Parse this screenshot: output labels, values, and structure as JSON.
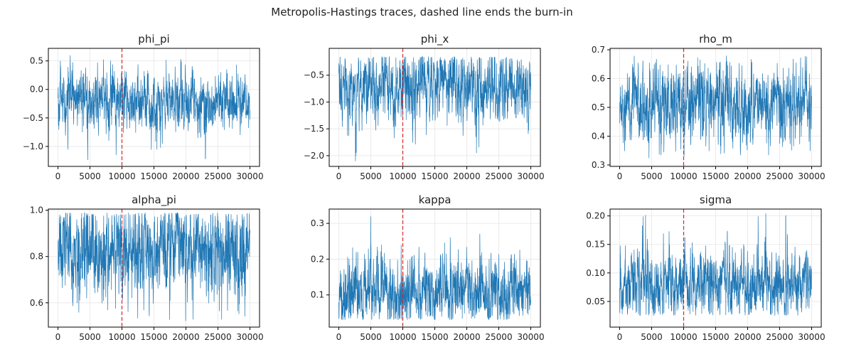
{
  "figure": {
    "suptitle": "Metropolis-Hastings traces, dashed line ends the burn-in"
  },
  "style": {
    "trace_color": "#1f77b4",
    "burnin_color": "#d62728",
    "grid_color": "#e6e6e6",
    "axis_color": "#000000"
  },
  "chart_data": [
    {
      "type": "line",
      "title": "phi_pi",
      "x_range": [
        0,
        30000
      ],
      "xlim": [
        -1500,
        31500
      ],
      "ylim": [
        -1.35,
        0.72
      ],
      "x_ticks": [
        0,
        5000,
        10000,
        15000,
        20000,
        25000,
        30000
      ],
      "x_tick_labels": [
        "0",
        "5000",
        "10000",
        "15000",
        "20000",
        "25000",
        "30000"
      ],
      "y_ticks": [
        -1.0,
        -0.5,
        0.0,
        0.5
      ],
      "y_tick_labels": [
        "−1.0",
        "−0.5",
        "0.0",
        "0.5"
      ],
      "burn_in": 10000,
      "trace_summary": {
        "center": -0.2,
        "spread": 0.19,
        "min": -1.25,
        "max": 0.62
      },
      "grid": true
    },
    {
      "type": "line",
      "title": "phi_x",
      "x_range": [
        0,
        30000
      ],
      "xlim": [
        -1500,
        31500
      ],
      "ylim": [
        -2.2,
        -0.0
      ],
      "x_ticks": [
        0,
        5000,
        10000,
        15000,
        20000,
        25000,
        30000
      ],
      "x_tick_labels": [
        "0",
        "5000",
        "10000",
        "15000",
        "20000",
        "25000",
        "30000"
      ],
      "y_ticks": [
        -2.0,
        -1.5,
        -1.0,
        -0.5
      ],
      "y_tick_labels": [
        "−2.0",
        "−1.5",
        "−1.0",
        "−0.5"
      ],
      "burn_in": 10000,
      "trace_summary": {
        "center": -0.72,
        "spread": 0.24,
        "min": -2.1,
        "max": -0.15
      },
      "grid": true
    },
    {
      "type": "line",
      "title": "rho_m",
      "x_range": [
        0,
        30000
      ],
      "xlim": [
        -1500,
        31500
      ],
      "ylim": [
        0.295,
        0.705
      ],
      "x_ticks": [
        0,
        5000,
        10000,
        15000,
        20000,
        25000,
        30000
      ],
      "x_tick_labels": [
        "0",
        "5000",
        "10000",
        "15000",
        "20000",
        "25000",
        "30000"
      ],
      "y_ticks": [
        0.3,
        0.4,
        0.5,
        0.6,
        0.7
      ],
      "y_tick_labels": [
        "0.3",
        "0.4",
        "0.5",
        "0.6",
        "0.7"
      ],
      "burn_in": 10000,
      "trace_summary": {
        "center": 0.51,
        "spread": 0.05,
        "min": 0.32,
        "max": 0.68
      },
      "grid": true
    },
    {
      "type": "line",
      "title": "alpha_pi",
      "x_range": [
        0,
        30000
      ],
      "xlim": [
        -1500,
        31500
      ],
      "ylim": [
        0.495,
        1.005
      ],
      "x_ticks": [
        0,
        5000,
        10000,
        15000,
        20000,
        25000,
        30000
      ],
      "x_tick_labels": [
        "0",
        "5000",
        "10000",
        "15000",
        "20000",
        "25000",
        "30000"
      ],
      "y_ticks": [
        0.6,
        0.8,
        1.0
      ],
      "y_tick_labels": [
        "0.6",
        "0.8",
        "1.0"
      ],
      "burn_in": 10000,
      "trace_summary": {
        "center": 0.82,
        "spread": 0.08,
        "min": 0.52,
        "max": 0.99
      },
      "grid": true
    },
    {
      "type": "line",
      "title": "kappa",
      "x_range": [
        0,
        30000
      ],
      "xlim": [
        -1500,
        31500
      ],
      "ylim": [
        0.01,
        0.34
      ],
      "x_ticks": [
        0,
        5000,
        10000,
        15000,
        20000,
        25000,
        30000
      ],
      "x_tick_labels": [
        "0",
        "5000",
        "10000",
        "15000",
        "20000",
        "25000",
        "30000"
      ],
      "y_ticks": [
        0.1,
        0.2,
        0.3
      ],
      "y_tick_labels": [
        "0.1",
        "0.2",
        "0.3"
      ],
      "burn_in": 10000,
      "trace_summary": {
        "center": 0.11,
        "spread": 0.035,
        "min": 0.03,
        "max": 0.32
      },
      "grid": true
    },
    {
      "type": "line",
      "title": "sigma",
      "x_range": [
        0,
        30000
      ],
      "xlim": [
        -1500,
        31500
      ],
      "ylim": [
        0.005,
        0.212
      ],
      "x_ticks": [
        0,
        5000,
        10000,
        15000,
        20000,
        25000,
        30000
      ],
      "x_tick_labels": [
        "0",
        "5000",
        "10000",
        "15000",
        "20000",
        "25000",
        "30000"
      ],
      "y_ticks": [
        0.05,
        0.1,
        0.15,
        0.2
      ],
      "y_tick_labels": [
        "0.05",
        "0.10",
        "0.15",
        "0.20"
      ],
      "burn_in": 10000,
      "trace_summary": {
        "center": 0.08,
        "spread": 0.022,
        "min": 0.025,
        "max": 0.205
      },
      "grid": true
    }
  ]
}
